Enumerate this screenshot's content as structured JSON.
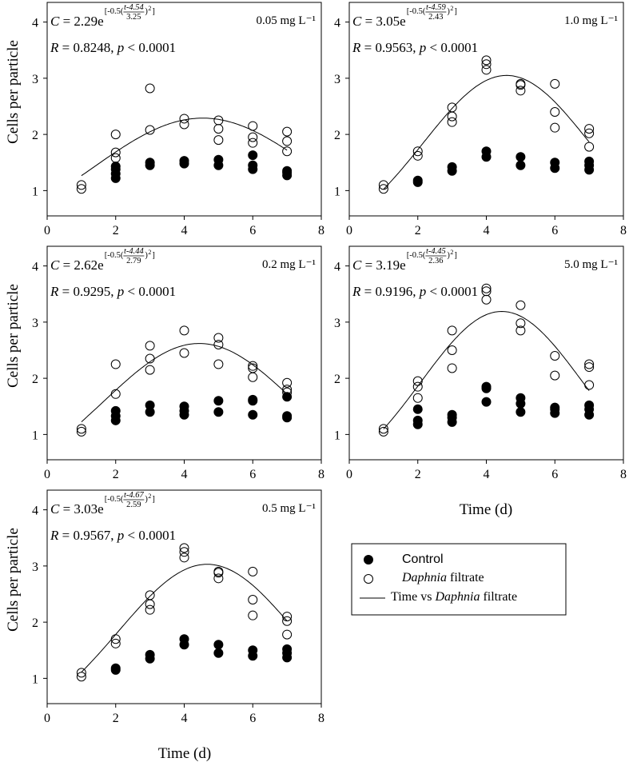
{
  "figure": {
    "ylabel": "Cells per particle",
    "xlabel": "Time (d)",
    "x_ticks": [
      "0",
      "2",
      "4",
      "6",
      "8"
    ],
    "y_ticks": [
      "1",
      "2",
      "3",
      "4"
    ]
  },
  "legend": {
    "control_label": "Control",
    "filtrate_italic": "Daphnia",
    "filtrate_rest": " filtrate",
    "fit_prefix": "Time vs ",
    "fit_italic": "Daphnia",
    "fit_rest": " filtrate"
  },
  "chart_data": [
    {
      "type": "scatter",
      "concentration": "0.05 mg L⁻¹",
      "equation": {
        "a": "2.29",
        "t0": "4.54",
        "b": "3.25"
      },
      "stats": {
        "R": "0.8248",
        "p": "< 0.0001"
      },
      "xlim": [
        0,
        8
      ],
      "ylim": [
        0.55,
        4.35
      ],
      "series": [
        {
          "name": "Control",
          "x": [
            2,
            2,
            2,
            2,
            3,
            3,
            4,
            4,
            5,
            5,
            6,
            6,
            6,
            7,
            7,
            7
          ],
          "y": [
            1.22,
            1.3,
            1.38,
            1.43,
            1.45,
            1.5,
            1.48,
            1.53,
            1.45,
            1.55,
            1.38,
            1.45,
            1.63,
            1.27,
            1.32,
            1.35
          ]
        },
        {
          "name": "Daphnia filtrate",
          "x": [
            1,
            1,
            2,
            2,
            2,
            3,
            3,
            4,
            4,
            5,
            5,
            5,
            6,
            6,
            6,
            7,
            7,
            7
          ],
          "y": [
            1.03,
            1.1,
            1.58,
            1.68,
            2.0,
            2.08,
            2.82,
            2.18,
            2.28,
            1.9,
            2.1,
            2.25,
            1.85,
            1.95,
            2.15,
            1.7,
            1.88,
            2.05
          ]
        },
        {
          "name": "Time vs Daphnia filtrate",
          "fit": {
            "a": 2.29,
            "t0": 4.54,
            "b": 3.25
          }
        }
      ]
    },
    {
      "type": "scatter",
      "concentration": "1.0 mg L⁻¹",
      "equation": {
        "a": "3.05",
        "t0": "4.59",
        "b": "2.43"
      },
      "stats": {
        "R": "0.9563",
        "p": "< 0.0001"
      },
      "xlim": [
        0,
        8
      ],
      "ylim": [
        0.55,
        4.35
      ],
      "series": [
        {
          "name": "Control",
          "x": [
            2,
            2,
            3,
            3,
            4,
            4,
            5,
            5,
            6,
            6,
            7,
            7,
            7
          ],
          "y": [
            1.15,
            1.18,
            1.35,
            1.42,
            1.6,
            1.7,
            1.45,
            1.6,
            1.4,
            1.5,
            1.37,
            1.45,
            1.52
          ]
        },
        {
          "name": "Daphnia filtrate",
          "x": [
            1,
            1,
            2,
            2,
            3,
            3,
            3,
            4,
            4,
            4,
            5,
            5,
            5,
            6,
            6,
            6,
            7,
            7,
            7
          ],
          "y": [
            1.03,
            1.1,
            1.62,
            1.7,
            2.22,
            2.32,
            2.48,
            3.15,
            3.25,
            3.32,
            2.78,
            2.88,
            2.9,
            2.12,
            2.4,
            2.9,
            1.78,
            2.02,
            2.1
          ]
        },
        {
          "name": "Time vs Daphnia filtrate",
          "fit": {
            "a": 3.05,
            "t0": 4.59,
            "b": 2.43
          }
        }
      ]
    },
    {
      "type": "scatter",
      "concentration": "0.2 mg L⁻¹",
      "equation": {
        "a": "2.62",
        "t0": "4.44",
        "b": "2.79"
      },
      "stats": {
        "R": "0.9295",
        "p": "< 0.0001"
      },
      "xlim": [
        0,
        8
      ],
      "ylim": [
        0.55,
        4.35
      ],
      "series": [
        {
          "name": "Control",
          "x": [
            2,
            2,
            2,
            3,
            3,
            4,
            4,
            4,
            5,
            5,
            6,
            6,
            6,
            7,
            7,
            7
          ],
          "y": [
            1.25,
            1.33,
            1.42,
            1.4,
            1.52,
            1.35,
            1.42,
            1.5,
            1.4,
            1.6,
            1.35,
            1.6,
            1.62,
            1.3,
            1.33,
            1.67
          ]
        },
        {
          "name": "Daphnia filtrate",
          "x": [
            1,
            1,
            2,
            2,
            3,
            3,
            3,
            4,
            4,
            5,
            5,
            5,
            6,
            6,
            6,
            7,
            7,
            7
          ],
          "y": [
            1.05,
            1.1,
            1.72,
            2.25,
            2.15,
            2.35,
            2.58,
            2.45,
            2.85,
            2.25,
            2.6,
            2.72,
            2.02,
            2.18,
            2.22,
            1.75,
            1.8,
            1.92
          ]
        },
        {
          "name": "Time vs Daphnia filtrate",
          "fit": {
            "a": 2.62,
            "t0": 4.44,
            "b": 2.79
          }
        }
      ]
    },
    {
      "type": "scatter",
      "concentration": "5.0 mg L⁻¹",
      "equation": {
        "a": "3.19",
        "t0": "4.45",
        "b": "2.36"
      },
      "stats": {
        "R": "0.9196",
        "p": "< 0.0001"
      },
      "xlim": [
        0,
        8
      ],
      "ylim": [
        0.55,
        4.35
      ],
      "series": [
        {
          "name": "Control",
          "x": [
            2,
            2,
            2,
            3,
            3,
            3,
            4,
            4,
            4,
            5,
            5,
            5,
            6,
            6,
            6,
            7,
            7,
            7
          ],
          "y": [
            1.18,
            1.25,
            1.45,
            1.22,
            1.3,
            1.35,
            1.58,
            1.82,
            1.85,
            1.4,
            1.55,
            1.65,
            1.38,
            1.45,
            1.48,
            1.35,
            1.45,
            1.52
          ]
        },
        {
          "name": "Daphnia filtrate",
          "x": [
            1,
            1,
            2,
            2,
            2,
            3,
            3,
            3,
            4,
            4,
            4,
            5,
            5,
            5,
            6,
            6,
            7,
            7,
            7
          ],
          "y": [
            1.05,
            1.1,
            1.65,
            1.85,
            1.95,
            2.18,
            2.5,
            2.85,
            3.4,
            3.55,
            3.6,
            2.85,
            2.98,
            3.3,
            2.05,
            2.4,
            1.88,
            2.2,
            2.25
          ]
        },
        {
          "name": "Time vs Daphnia filtrate",
          "fit": {
            "a": 3.19,
            "t0": 4.45,
            "b": 2.36
          }
        }
      ]
    },
    {
      "type": "scatter",
      "concentration": "0.5 mg L⁻¹",
      "equation": {
        "a": "3.03",
        "t0": "4.67",
        "b": "2.59"
      },
      "stats": {
        "R": "0.9567",
        "p": "< 0.0001"
      },
      "xlim": [
        0,
        8
      ],
      "ylim": [
        0.55,
        4.35
      ],
      "series": [
        {
          "name": "Control",
          "x": [
            2,
            2,
            3,
            3,
            4,
            4,
            5,
            5,
            6,
            6,
            7,
            7,
            7
          ],
          "y": [
            1.15,
            1.18,
            1.35,
            1.42,
            1.6,
            1.7,
            1.45,
            1.6,
            1.4,
            1.5,
            1.37,
            1.45,
            1.52
          ]
        },
        {
          "name": "Daphnia filtrate",
          "x": [
            1,
            1,
            2,
            2,
            3,
            3,
            3,
            4,
            4,
            4,
            5,
            5,
            5,
            6,
            6,
            6,
            7,
            7,
            7
          ],
          "y": [
            1.03,
            1.1,
            1.62,
            1.7,
            2.22,
            2.32,
            2.48,
            3.15,
            3.25,
            3.32,
            2.78,
            2.88,
            2.9,
            2.12,
            2.4,
            2.9,
            1.78,
            2.02,
            2.1
          ]
        },
        {
          "name": "Time vs Daphnia filtrate",
          "fit": {
            "a": 3.03,
            "t0": 4.67,
            "b": 2.59
          }
        }
      ]
    }
  ]
}
